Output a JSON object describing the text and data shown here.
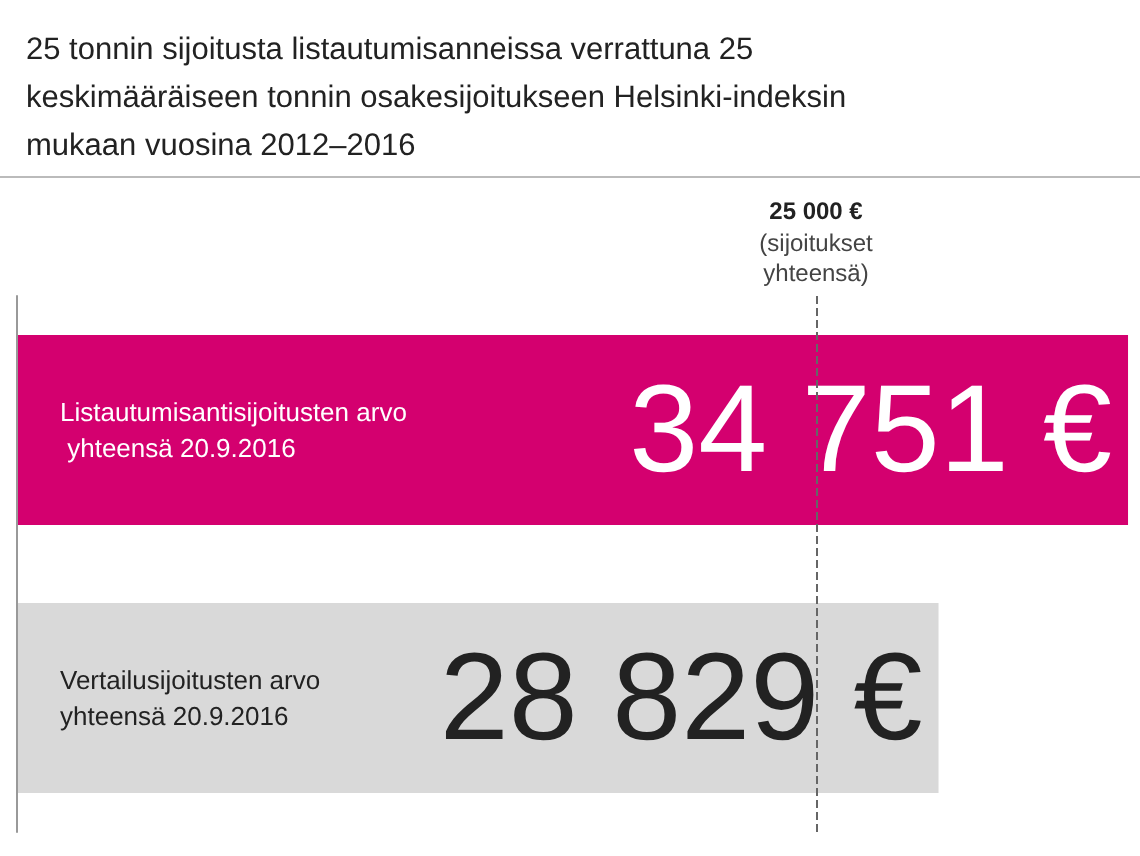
{
  "chart_data": {
    "type": "bar",
    "orientation": "horizontal",
    "title": "25 tonnin sijoitusta listautumisanneissa verrattuna 25 keskimääräiseen tonnin osakesijoitukseen Helsinki-indeksin mukaan vuosina 2012–2016",
    "categories": [
      "Listautumisantisijoitusten arvo yhteensä 20.9.2016",
      "Vertailusijoitusten arvo yhteensä 20.9.2016"
    ],
    "values": [
      34751,
      28829
    ],
    "colors": [
      "#d4006f",
      "#d9d9d9"
    ],
    "value_labels": [
      "34 751 €",
      "28 829 €"
    ],
    "xlim": [
      0,
      35000
    ],
    "tick_labels": "y",
    "ref_lines": [
      {
        "axis": "x",
        "value": 25000,
        "label": "25 000 €\n(sijoitukset\nyhteensä)",
        "color": "#666666",
        "line_style": "dashed"
      }
    ]
  }
}
